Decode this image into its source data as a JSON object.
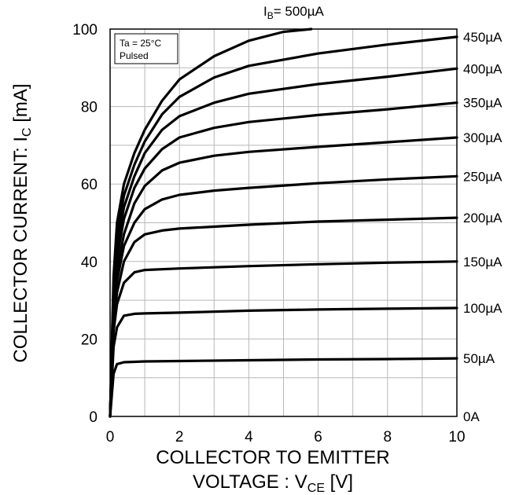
{
  "chart_data": {
    "type": "line",
    "title": "",
    "xlabel": {
      "line1": "COLLECTOR TO EMITTER",
      "line2_prefix": "VOLTAGE : V",
      "line2_sub": "CE",
      "line2_suffix": " [V]"
    },
    "ylabel": {
      "prefix": "COLLECTOR CURRENT: I",
      "sub": "C",
      "suffix": " [mA]"
    },
    "xlim": [
      0,
      10
    ],
    "ylim": [
      0,
      100
    ],
    "xticks": [
      "0",
      "2",
      "4",
      "6",
      "8",
      "10"
    ],
    "yticks": [
      "0",
      "20",
      "40",
      "60",
      "80",
      "100"
    ],
    "grid": true,
    "conditions": [
      "Ta = 25°C",
      "Pulsed"
    ],
    "top_label": {
      "prefix": "I",
      "sub": "B",
      "suffix": "= 500µA"
    },
    "series": [
      {
        "name": "0A",
        "points": [
          [
            0,
            0
          ],
          [
            10,
            0
          ]
        ]
      },
      {
        "name": "50µA",
        "points": [
          [
            0,
            0
          ],
          [
            0.1,
            11
          ],
          [
            0.2,
            13.5
          ],
          [
            0.4,
            14
          ],
          [
            1,
            14.2
          ],
          [
            2,
            14.3
          ],
          [
            4,
            14.5
          ],
          [
            6,
            14.7
          ],
          [
            8,
            14.8
          ],
          [
            10,
            15
          ]
        ]
      },
      {
        "name": "100µA",
        "points": [
          [
            0,
            0
          ],
          [
            0.1,
            18
          ],
          [
            0.2,
            23
          ],
          [
            0.4,
            26
          ],
          [
            0.7,
            26.5
          ],
          [
            1,
            26.6
          ],
          [
            2,
            26.8
          ],
          [
            4,
            27.3
          ],
          [
            6,
            27.6
          ],
          [
            8,
            27.8
          ],
          [
            10,
            28
          ]
        ]
      },
      {
        "name": "150µA",
        "points": [
          [
            0,
            0
          ],
          [
            0.1,
            22
          ],
          [
            0.2,
            29
          ],
          [
            0.4,
            34.5
          ],
          [
            0.7,
            37.2
          ],
          [
            1,
            37.8
          ],
          [
            2,
            38.2
          ],
          [
            4,
            38.8
          ],
          [
            6,
            39.3
          ],
          [
            8,
            39.7
          ],
          [
            10,
            40
          ]
        ]
      },
      {
        "name": "200µA",
        "points": [
          [
            0,
            0
          ],
          [
            0.1,
            24
          ],
          [
            0.2,
            32
          ],
          [
            0.4,
            40
          ],
          [
            0.7,
            45
          ],
          [
            1,
            47
          ],
          [
            1.5,
            48
          ],
          [
            2,
            48.5
          ],
          [
            4,
            49.5
          ],
          [
            6,
            50.3
          ],
          [
            8,
            50.8
          ],
          [
            10,
            51.3
          ]
        ]
      },
      {
        "name": "250µA",
        "points": [
          [
            0,
            0
          ],
          [
            0.1,
            26
          ],
          [
            0.2,
            35
          ],
          [
            0.4,
            44
          ],
          [
            0.7,
            50
          ],
          [
            1,
            53.5
          ],
          [
            1.5,
            56
          ],
          [
            2,
            57.2
          ],
          [
            3,
            58.3
          ],
          [
            4,
            59
          ],
          [
            6,
            60.2
          ],
          [
            8,
            61.2
          ],
          [
            10,
            62
          ]
        ]
      },
      {
        "name": "300µA",
        "points": [
          [
            0,
            0
          ],
          [
            0.1,
            28
          ],
          [
            0.2,
            38
          ],
          [
            0.4,
            47
          ],
          [
            0.7,
            55
          ],
          [
            1,
            59.5
          ],
          [
            1.5,
            63.5
          ],
          [
            2,
            65.5
          ],
          [
            3,
            67.3
          ],
          [
            4,
            68.3
          ],
          [
            6,
            69.6
          ],
          [
            8,
            70.8
          ],
          [
            10,
            72
          ]
        ]
      },
      {
        "name": "350µA",
        "points": [
          [
            0,
            0
          ],
          [
            0.1,
            30
          ],
          [
            0.2,
            41
          ],
          [
            0.4,
            51
          ],
          [
            0.7,
            59
          ],
          [
            1,
            64
          ],
          [
            1.5,
            69
          ],
          [
            2,
            72
          ],
          [
            3,
            74.5
          ],
          [
            4,
            76
          ],
          [
            6,
            77.8
          ],
          [
            8,
            79.3
          ],
          [
            10,
            81
          ]
        ]
      },
      {
        "name": "400µA",
        "points": [
          [
            0,
            0
          ],
          [
            0.1,
            32
          ],
          [
            0.2,
            44
          ],
          [
            0.4,
            54
          ],
          [
            0.7,
            62
          ],
          [
            1,
            68
          ],
          [
            1.5,
            74
          ],
          [
            2,
            77.5
          ],
          [
            3,
            81
          ],
          [
            4,
            83.3
          ],
          [
            6,
            85.8
          ],
          [
            8,
            87.7
          ],
          [
            10,
            89.8
          ]
        ]
      },
      {
        "name": "450µA",
        "points": [
          [
            0,
            0
          ],
          [
            0.1,
            34
          ],
          [
            0.2,
            47
          ],
          [
            0.4,
            57
          ],
          [
            0.7,
            65
          ],
          [
            1,
            71
          ],
          [
            1.5,
            78
          ],
          [
            2,
            82.5
          ],
          [
            3,
            87.5
          ],
          [
            4,
            90.5
          ],
          [
            6,
            93.7
          ],
          [
            8,
            96
          ],
          [
            10,
            98
          ]
        ]
      },
      {
        "name": "500µA",
        "points": [
          [
            0,
            0
          ],
          [
            0.1,
            36
          ],
          [
            0.2,
            50
          ],
          [
            0.4,
            60
          ],
          [
            0.7,
            68
          ],
          [
            1,
            74
          ],
          [
            1.5,
            81.5
          ],
          [
            2,
            87
          ],
          [
            3,
            93
          ],
          [
            4,
            97
          ],
          [
            5,
            99.3
          ],
          [
            5.8,
            100
          ]
        ]
      }
    ]
  }
}
